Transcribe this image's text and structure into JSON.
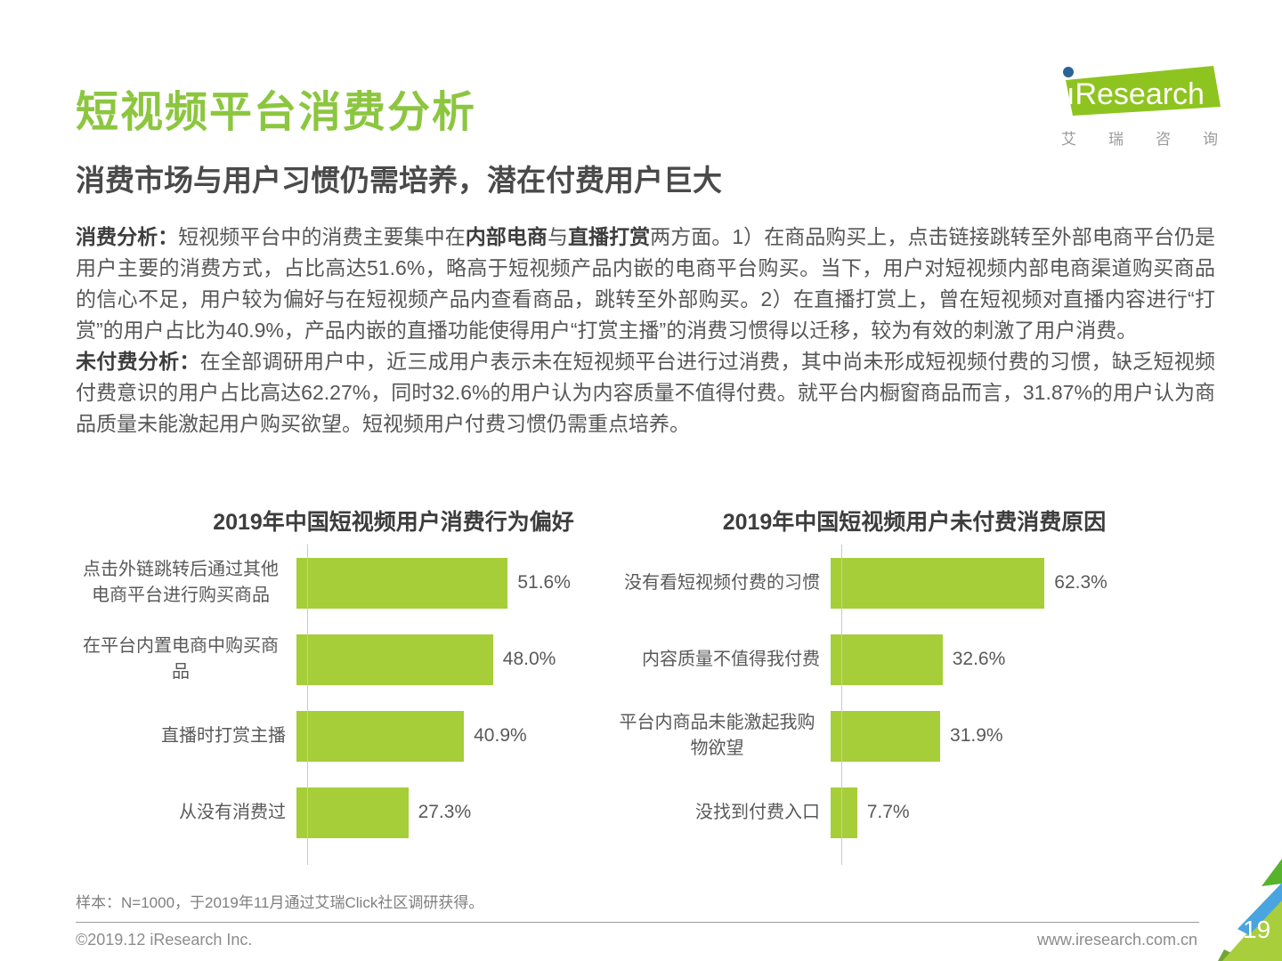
{
  "page": {
    "title": "短视频平台消费分析",
    "subtitle": "消费市场与用户习惯仍需培养，潜在付费用户巨大",
    "page_number": "19"
  },
  "logo": {
    "brand_i": "ı",
    "brand_text": "Research",
    "subtext_chars": [
      "艾",
      "瑞",
      "咨",
      "询"
    ],
    "green": "#8ec41f",
    "dot_blue": "#2a6496"
  },
  "paragraphs": [
    {
      "label": "消费分析：",
      "segments": [
        {
          "text": "短视频平台中的消费主要集中在"
        },
        {
          "text": "内部电商",
          "bold": true
        },
        {
          "text": "与"
        },
        {
          "text": "直播打赏",
          "bold": true
        },
        {
          "text": "两方面。1）在商品购买上，点击链接跳转至外部电商平台仍是用户主要的消费方式，占比高达51.6%，略高于短视频产品内嵌的电商平台购买。当下，用户对短视频内部电商渠道购买商品的信心不足，用户较为偏好与在短视频产品内查看商品，跳转至外部购买。2）在直播打赏上，曾在短视频对直播内容进行“打赏”的用户占比为40.9%，产品内嵌的直播功能使得用户“打赏主播”的消费习惯得以迁移，较为有效的刺激了用户消费。"
        }
      ]
    },
    {
      "label": "未付费分析：",
      "segments": [
        {
          "text": "在全部调研用户中，近三成用户表示未在短视频平台进行过消费，其中尚未形成短视频付费的习惯，缺乏短视频付费意识的用户占比高达62.27%，同时32.6%的用户认为内容质量不值得付费。就平台内橱窗商品而言，31.87%的用户认为商品质量未能激起用户购买欲望。短视频用户付费习惯仍需重点培养。"
        }
      ]
    }
  ],
  "chart_data": [
    {
      "type": "bar",
      "orientation": "horizontal",
      "title": "2019年中国短视频用户消费行为偏好",
      "categories": [
        "点击外链跳转后通过其他电商平台进行购买商品",
        "在平台内置电商中购买商品",
        "直播时打赏主播",
        "从没有消费过"
      ],
      "values": [
        51.6,
        48.0,
        40.9,
        27.3
      ],
      "value_labels": [
        "51.6%",
        "48.0%",
        "40.9%",
        "27.3%"
      ],
      "xlim": [
        0,
        60
      ],
      "grid": false,
      "bar_color": "#a5ce39",
      "value_label_position": "right"
    },
    {
      "type": "bar",
      "orientation": "horizontal",
      "title": "2019年中国短视频用户未付费消费原因",
      "categories": [
        "没有看短视频付费的习惯",
        "内容质量不值得我付费",
        "平台内商品未能激起我购物欲望",
        "没找到付费入口"
      ],
      "values": [
        62.3,
        32.6,
        31.9,
        7.7
      ],
      "value_labels": [
        "62.3%",
        "32.6%",
        "31.9%",
        "7.7%"
      ],
      "xlim": [
        0,
        70
      ],
      "grid": false,
      "bar_color": "#a5ce39",
      "value_label_position": "right"
    }
  ],
  "footer": {
    "note": "样本：N=1000，于2019年11月通过艾瑞Click社区调研获得。",
    "copyright": "©2019.12 iResearch Inc.",
    "website": "www.iresearch.com.cn"
  },
  "colors": {
    "title_green": "#8cc63f",
    "bar_green": "#a5ce39",
    "subtitle_gray": "#4a4a4a",
    "body_gray": "#565656",
    "corner_blue": "#4aa4e0",
    "corner_light_green": "#a8ce3b",
    "corner_bright_green": "#56b32b",
    "corner_dark_green": "#6fa636"
  }
}
